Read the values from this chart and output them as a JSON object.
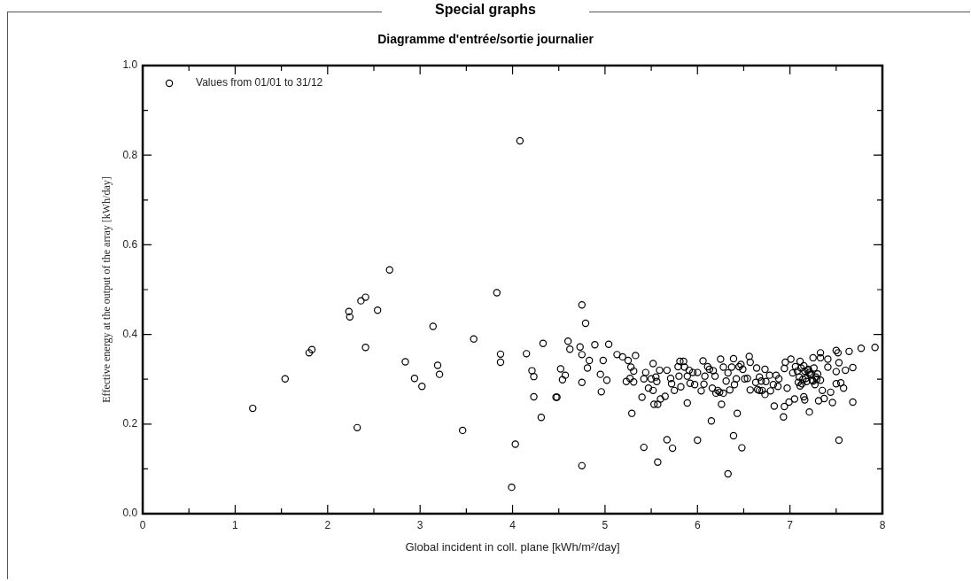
{
  "chart_data": {
    "type": "scatter",
    "title": "Special graphs",
    "subtitle": "Diagramme d'entrée/sortie journalier",
    "xlabel": "Global incident in coll. plane [kWh/m²/day]",
    "ylabel": "Effective energy at the output of the array [kWh/day]",
    "legend": "top left",
    "marker": "circle",
    "grid": false,
    "xlim": [
      0,
      8
    ],
    "ylim": [
      0,
      1
    ],
    "xticks": [
      0,
      {
        "value": 0.5,
        "label": null
      },
      1,
      {
        "value": 1.5,
        "label": null
      },
      2,
      {
        "value": 2.5,
        "label": null
      },
      3,
      {
        "value": 3.5,
        "label": null
      },
      4,
      {
        "value": 4.5,
        "label": null
      },
      5,
      {
        "value": 5.5,
        "label": null
      },
      6,
      {
        "value": 6.5,
        "label": null
      },
      7,
      {
        "value": 7.5,
        "label": null
      },
      8
    ],
    "yticks": [
      {
        "value": 0,
        "label": "0.0"
      },
      {
        "value": 0.1,
        "label": null
      },
      0.2,
      {
        "value": 0.3,
        "label": null
      },
      0.4,
      {
        "value": 0.5,
        "label": null
      },
      0.6,
      {
        "value": 0.7,
        "label": null
      },
      0.8,
      {
        "value": 0.9,
        "label": null
      },
      {
        "value": 1,
        "label": "1.0"
      }
    ],
    "series": [
      {
        "name": "Values from 01/01 to 31/12",
        "color": "#000000",
        "x": [
          1.19,
          1.54,
          1.8,
          1.83,
          2.23,
          2.24,
          2.36,
          2.41,
          2.32,
          2.41,
          2.54,
          2.67,
          2.84,
          2.94,
          3.02,
          3.14,
          3.19,
          3.21,
          3.46,
          3.58,
          3.83,
          3.87,
          3.87,
          4.08,
          4.03,
          3.99,
          4.15,
          4.21,
          4.23,
          4.23,
          4.31,
          4.33,
          4.47,
          4.48,
          4.52,
          4.54,
          4.57,
          4.6,
          4.62,
          4.73,
          4.75,
          4.75,
          4.75,
          4.75,
          4.79,
          4.81,
          4.83,
          4.89,
          4.95,
          4.96,
          4.98,
          5.02,
          5.04,
          5.13,
          5.19,
          5.25,
          5.28,
          5.31,
          5.33,
          5.27,
          5.23,
          5.31,
          5.29,
          5.4,
          5.42,
          5.44,
          5.42,
          5.47,
          5.5,
          5.52,
          5.52,
          5.53,
          5.57,
          5.55,
          5.56,
          5.57,
          5.59,
          5.6,
          5.65,
          5.67,
          5.67,
          5.71,
          5.72,
          5.73,
          5.75,
          5.79,
          5.8,
          5.81,
          5.82,
          5.85,
          5.86,
          5.89,
          5.89,
          5.91,
          5.92,
          5.95,
          5.97,
          6.0,
          6.0,
          6.04,
          6.06,
          6.07,
          6.08,
          6.11,
          6.13,
          6.15,
          6.16,
          6.17,
          6.19,
          6.2,
          6.22,
          6.24,
          6.25,
          6.26,
          6.28,
          6.28,
          6.31,
          6.33,
          6.33,
          6.35,
          6.37,
          6.39,
          6.39,
          6.4,
          6.42,
          6.43,
          6.45,
          6.47,
          6.48,
          6.49,
          6.51,
          6.54,
          6.56,
          6.57,
          6.57,
          6.63,
          6.64,
          6.65,
          6.67,
          6.67,
          6.69,
          6.7,
          6.73,
          6.73,
          6.74,
          6.78,
          6.79,
          6.82,
          6.83,
          6.85,
          6.87,
          6.88,
          6.93,
          6.94,
          6.94,
          6.95,
          6.97,
          6.99,
          7.01,
          7.03,
          7.05,
          7.06,
          7.08,
          7.1,
          7.12,
          7.14,
          7.16,
          7.18,
          7.2,
          7.22,
          7.24,
          7.26,
          7.28,
          7.3,
          7.13,
          7.17,
          7.21,
          7.25,
          7.29,
          7.11,
          7.15,
          7.19,
          7.23,
          7.27,
          7.09,
          7.33,
          7.35,
          7.11,
          7.15,
          7.16,
          7.21,
          7.25,
          7.31,
          7.33,
          7.33,
          7.37,
          7.41,
          7.41,
          7.44,
          7.46,
          7.5,
          7.52,
          7.53,
          7.5,
          7.53,
          7.5,
          7.55,
          7.58,
          7.6,
          7.64,
          7.68,
          7.68,
          7.77,
          7.92
        ],
        "values": [
          0.235,
          0.301,
          0.359,
          0.366,
          0.451,
          0.439,
          0.475,
          0.483,
          0.192,
          0.371,
          0.454,
          0.544,
          0.339,
          0.302,
          0.284,
          0.418,
          0.331,
          0.311,
          0.186,
          0.39,
          0.493,
          0.356,
          0.338,
          0.832,
          0.155,
          0.059,
          0.357,
          0.319,
          0.306,
          0.261,
          0.215,
          0.38,
          0.26,
          0.26,
          0.323,
          0.299,
          0.309,
          0.385,
          0.367,
          0.372,
          0.466,
          0.355,
          0.293,
          0.107,
          0.425,
          0.325,
          0.342,
          0.377,
          0.311,
          0.272,
          0.342,
          0.298,
          0.378,
          0.355,
          0.35,
          0.342,
          0.327,
          0.318,
          0.353,
          0.302,
          0.295,
          0.294,
          0.224,
          0.26,
          0.148,
          0.315,
          0.301,
          0.28,
          0.301,
          0.335,
          0.275,
          0.244,
          0.244,
          0.305,
          0.295,
          0.115,
          0.32,
          0.256,
          0.262,
          0.32,
          0.165,
          0.302,
          0.29,
          0.146,
          0.275,
          0.328,
          0.307,
          0.34,
          0.283,
          0.34,
          0.327,
          0.247,
          0.307,
          0.32,
          0.291,
          0.315,
          0.288,
          0.164,
          0.315,
          0.274,
          0.341,
          0.289,
          0.307,
          0.328,
          0.322,
          0.207,
          0.28,
          0.319,
          0.307,
          0.269,
          0.275,
          0.271,
          0.345,
          0.244,
          0.327,
          0.269,
          0.296,
          0.089,
          0.314,
          0.276,
          0.327,
          0.174,
          0.346,
          0.288,
          0.301,
          0.224,
          0.328,
          0.333,
          0.147,
          0.322,
          0.301,
          0.302,
          0.351,
          0.338,
          0.276,
          0.293,
          0.325,
          0.277,
          0.305,
          0.275,
          0.296,
          0.275,
          0.322,
          0.266,
          0.295,
          0.309,
          0.274,
          0.288,
          0.24,
          0.309,
          0.284,
          0.301,
          0.216,
          0.239,
          0.324,
          0.338,
          0.28,
          0.249,
          0.345,
          0.314,
          0.256,
          0.328,
          0.318,
          0.305,
          0.325,
          0.3,
          0.318,
          0.295,
          0.322,
          0.31,
          0.298,
          0.325,
          0.305,
          0.312,
          0.29,
          0.302,
          0.315,
          0.296,
          0.3,
          0.285,
          0.33,
          0.32,
          0.312,
          0.288,
          0.293,
          0.298,
          0.275,
          0.34,
          0.261,
          0.254,
          0.227,
          0.348,
          0.252,
          0.359,
          0.348,
          0.257,
          0.345,
          0.327,
          0.271,
          0.248,
          0.364,
          0.359,
          0.337,
          0.317,
          0.164,
          0.29,
          0.292,
          0.28,
          0.32,
          0.362,
          0.326,
          0.249,
          0.369,
          0.371
        ]
      }
    ]
  }
}
